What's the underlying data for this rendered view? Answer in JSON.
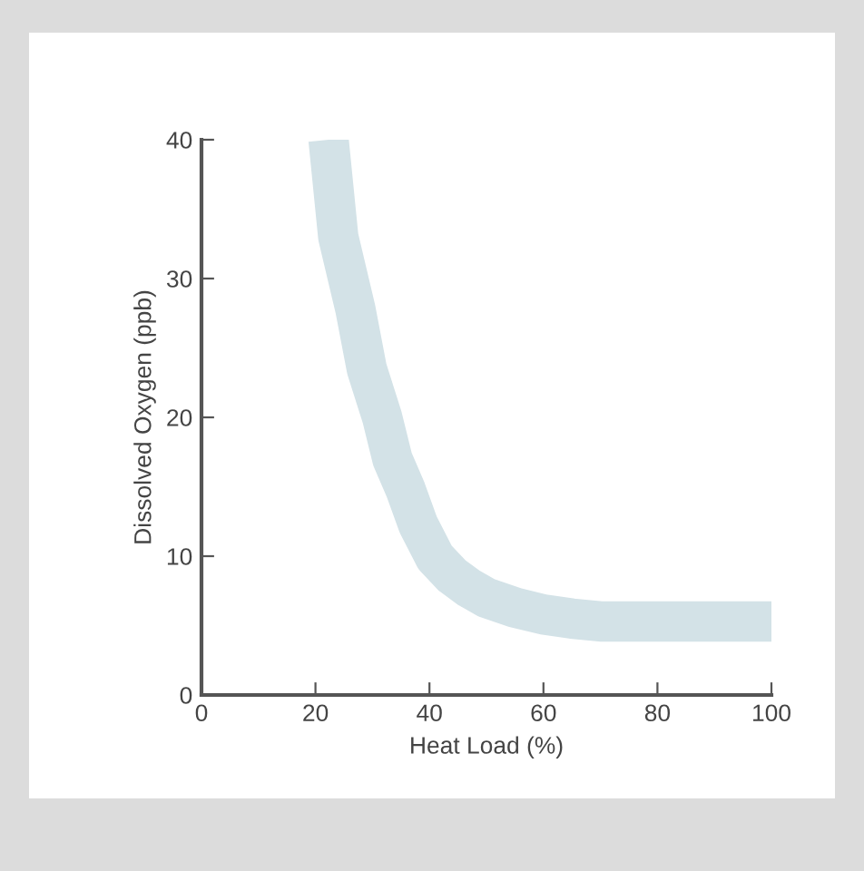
{
  "chart_data": {
    "type": "line",
    "xlabel": "Heat Load (%)",
    "ylabel": "Dissolved Oxygen (ppb)",
    "series": [
      {
        "color": "#d3e2e7",
        "x": [
          22.3,
          24,
          27,
          29,
          31.7,
          33.5,
          35.8,
          38,
          41,
          44,
          47,
          50,
          55,
          60,
          65,
          70,
          80,
          90,
          100
        ],
        "values": [
          40,
          33,
          27.8,
          23.5,
          20,
          17,
          14.8,
          12.3,
          9.9,
          8.6,
          7.7,
          7,
          6.3,
          5.8,
          5.5,
          5.3,
          5.3,
          5.3,
          5.3
        ]
      }
    ],
    "xlim": [
      0,
      100
    ],
    "ylim": [
      0,
      40
    ],
    "xticks": [
      0,
      20,
      40,
      60,
      80,
      100
    ],
    "yticks": [
      0,
      10,
      20,
      30,
      40
    ],
    "marker": "none",
    "line_style": "solid"
  }
}
